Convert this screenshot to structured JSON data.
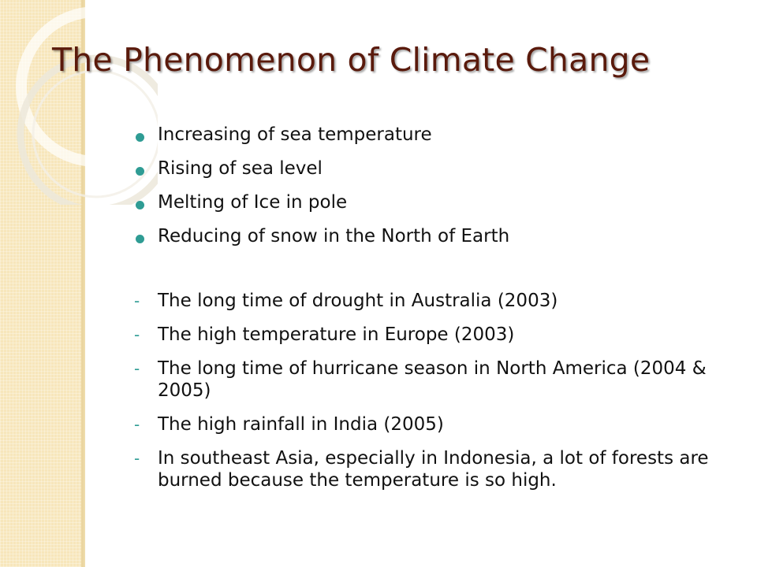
{
  "slide": {
    "title": "The Phenomenon of Climate Change",
    "bullets": [
      "Increasing of sea temperature",
      "Rising of sea level",
      "Melting of Ice in pole",
      "Reducing of snow in the North of Earth"
    ],
    "events": [
      "The long time of drought in  Australia (2003)",
      "The high temperature in Europe (2003)",
      "The long time of hurricane season in North America (2004 & 2005)",
      "The high rainfall in India (2005)",
      "In southeast Asia, especially in Indonesia, a lot of forests are burned because the temperature is so high."
    ],
    "event_marker": "-"
  },
  "colors": {
    "title": "#5a1a0c",
    "accent": "#2f9c94",
    "side_band": "#f7e6bb",
    "text": "#111111"
  },
  "icons": {
    "bullet": "teal-dot-icon",
    "decoration": "concentric-circles-icon"
  }
}
